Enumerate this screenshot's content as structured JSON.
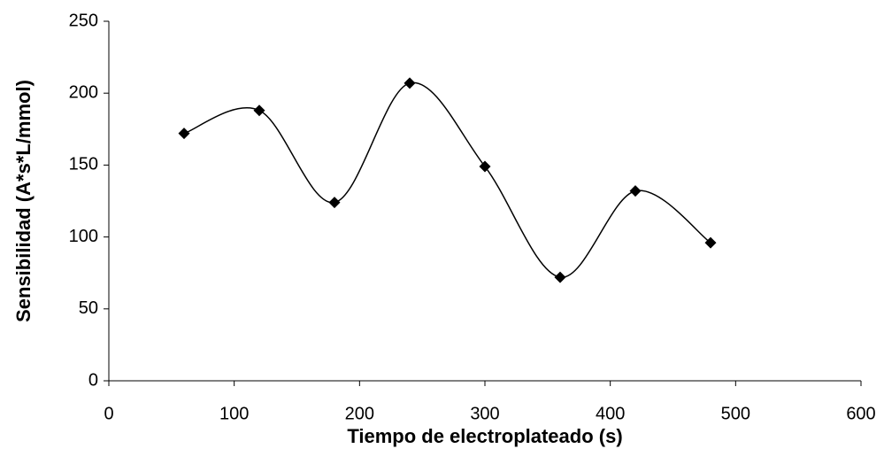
{
  "chart_data": {
    "type": "line",
    "smooth": true,
    "marker": "diamond",
    "color": "#000000",
    "x_label": "Tiempo de electroplateado (s)",
    "y_label": "Sensibilidad (A*s*L/mmol)",
    "x": [
      60,
      120,
      180,
      240,
      300,
      360,
      420,
      480
    ],
    "values": [
      172,
      188,
      124,
      207,
      149,
      72,
      132,
      96
    ],
    "xlim": [
      0,
      600
    ],
    "xticks": [
      0,
      100,
      200,
      300,
      400,
      500,
      600
    ],
    "ylim": [
      0,
      250
    ],
    "yticks": [
      0,
      50,
      100,
      150,
      200,
      250
    ],
    "grid": false
  }
}
